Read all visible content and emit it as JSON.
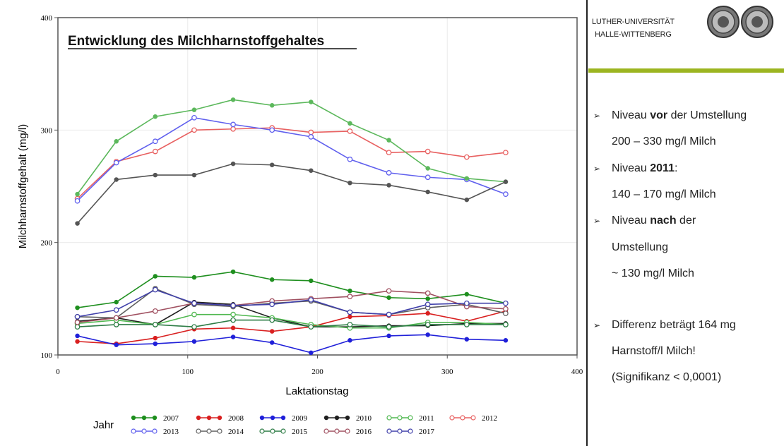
{
  "chart_data": {
    "type": "line",
    "title": "Entwicklung des Milchharnstoffgehaltes",
    "xlabel": "Laktationstag",
    "ylabel": "Milchharnstoffgehalt (mg/l)",
    "xlim": [
      0,
      400
    ],
    "ylim": [
      100,
      400
    ],
    "xticks": [
      0,
      100,
      200,
      300,
      400
    ],
    "yticks": [
      100,
      200,
      300,
      400
    ],
    "grid": true,
    "legend_title": "Jahr",
    "legend_position": "bottom",
    "x": [
      15,
      45,
      75,
      105,
      135,
      165,
      195,
      225,
      255,
      285,
      315,
      345
    ],
    "series": [
      {
        "name": "2007",
        "color": "#1f8f1f",
        "marker": "filled",
        "values": [
          142,
          147,
          170,
          169,
          174,
          167,
          166,
          157,
          151,
          150,
          154,
          146
        ]
      },
      {
        "name": "2008",
        "color": "#d92020",
        "marker": "filled",
        "values": [
          112,
          110,
          115,
          123,
          124,
          121,
          125,
          134,
          135,
          137,
          130,
          139
        ]
      },
      {
        "name": "2009",
        "color": "#2020d9",
        "marker": "filled",
        "values": [
          117,
          109,
          110,
          112,
          116,
          111,
          102,
          113,
          117,
          118,
          114,
          113
        ]
      },
      {
        "name": "2010",
        "color": "#202020",
        "marker": "filled",
        "values": [
          130,
          133,
          127,
          147,
          145,
          133,
          125,
          125,
          126,
          126,
          128,
          128
        ]
      },
      {
        "name": "2011",
        "color": "#50b850",
        "marker": "open",
        "values": [
          128,
          131,
          127,
          136,
          136,
          133,
          127,
          124,
          124,
          129,
          129,
          127
        ]
      },
      {
        "name": "2012",
        "color": "#e86060",
        "marker": "open",
        "values": [
          239,
          272,
          281,
          300,
          301,
          302,
          298,
          299,
          280,
          281,
          276,
          280
        ]
      },
      {
        "name": "2013",
        "color": "#6060ee",
        "marker": "open",
        "values": [
          237,
          271,
          290,
          311,
          305,
          300,
          294,
          274,
          262,
          258,
          256,
          243
        ]
      },
      {
        "name": "2014",
        "color": "#606060",
        "marker": "open",
        "values": [
          134,
          133,
          159,
          145,
          143,
          146,
          148,
          138,
          136,
          142,
          145,
          137
        ]
      },
      {
        "name": "2015",
        "color": "#2e7d46",
        "marker": "open",
        "values": [
          125,
          127,
          127,
          125,
          131,
          131,
          125,
          127,
          125,
          127,
          127,
          127
        ]
      },
      {
        "name": "2016",
        "color": "#a05060",
        "marker": "open",
        "values": [
          129,
          133,
          139,
          146,
          144,
          148,
          150,
          152,
          157,
          155,
          143,
          141
        ]
      },
      {
        "name": "2017",
        "color": "#4040aa",
        "marker": "open",
        "values": [
          134,
          140,
          158,
          146,
          144,
          145,
          149,
          138,
          136,
          145,
          146,
          146
        ]
      },
      {
        "name": "",
        "color": "#5cb85c",
        "marker": "filled",
        "values": [
          243,
          290,
          312,
          318,
          327,
          322,
          325,
          306,
          291,
          266,
          257,
          254
        ]
      },
      {
        "name": "",
        "color": "#555555",
        "marker": "filled",
        "values": [
          217,
          256,
          260,
          260,
          270,
          269,
          264,
          253,
          251,
          245,
          238,
          254
        ]
      }
    ]
  },
  "header": {
    "university_line1": "LUTHER-UNIVERSITÄT",
    "university_line2": "HALLE-WITTENBERG"
  },
  "notes": {
    "b1_pre": "Niveau ",
    "b1_bold": "vor",
    "b1_post": " der Umstellung",
    "b1_line2": "200 – 330 mg/l Milch",
    "b2_pre": "Niveau ",
    "b2_bold": "2011",
    "b2_post": ":",
    "b2_line2": "140 – 170 mg/l Milch",
    "b3_pre": "Niveau ",
    "b3_bold": "nach",
    "b3_post": " der",
    "b3_line2": "Umstellung",
    "b3_line3": "~ 130 mg/l Milch",
    "b4_line1": "Differenz beträgt 164 mg",
    "b4_line2": "Harnstoff/l Milch!",
    "b4_line3": "(Signifikanz < 0,0001)",
    "arrow": "➢"
  }
}
